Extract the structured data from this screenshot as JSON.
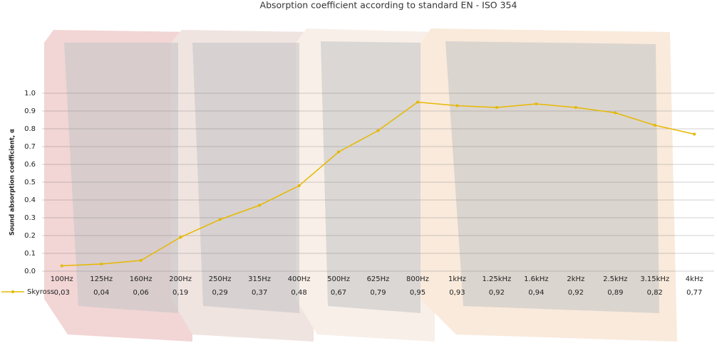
{
  "chart_data": {
    "type": "line",
    "title": "Absorption coefficient according to standard EN - ISO 354",
    "y_label": "Sound absorption coefficient, α",
    "categories": [
      "100Hz",
      "125Hz",
      "160Hz",
      "200Hz",
      "250Hz",
      "315Hz",
      "400Hz",
      "500Hz",
      "625Hz",
      "800Hz",
      "1kHz",
      "1.25kHz",
      "1.6kHz",
      "2kHz",
      "2.5kHz",
      "3.15kHz",
      "4kHz"
    ],
    "series": [
      {
        "name": "Skyross",
        "color": "#e6b800",
        "values": [
          0.03,
          0.04,
          0.06,
          0.19,
          0.29,
          0.37,
          0.48,
          0.67,
          0.79,
          0.95,
          0.93,
          0.92,
          0.94,
          0.92,
          0.89,
          0.82,
          0.77
        ],
        "value_labels": [
          "0,03",
          "0,04",
          "0,06",
          "0,19",
          "0,29",
          "0,37",
          "0,48",
          "0,67",
          "0,79",
          "0,95",
          "0,93",
          "0,92",
          "0,94",
          "0,92",
          "0,89",
          "0,82",
          "0,77"
        ]
      }
    ],
    "ylim": [
      0,
      1
    ],
    "yticks": [
      {
        "value": 0,
        "label": "0.0"
      },
      0.1,
      0.2,
      0.3,
      0.4,
      0.5,
      0.6,
      0.7,
      0.8,
      0.9,
      {
        "value": 1,
        "label": "1.0"
      }
    ],
    "grid": true
  }
}
